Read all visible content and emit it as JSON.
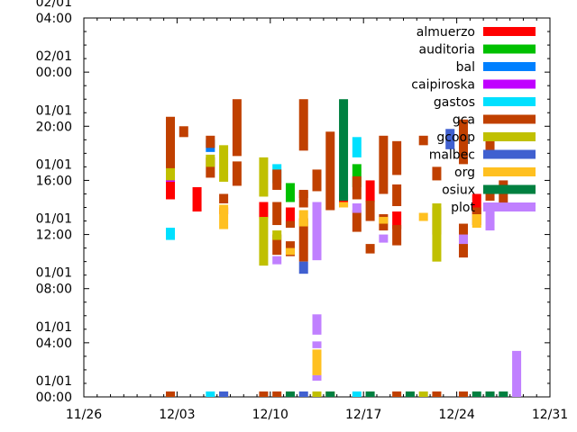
{
  "chart_data": {
    "type": "timeline",
    "title": "",
    "xlabel": "",
    "ylabel": "",
    "x_ticks": [
      "11/26",
      "12/03",
      "12/10",
      "12/17",
      "12/24",
      "12/31"
    ],
    "x_range_days": [
      0,
      35
    ],
    "y_ticks": [
      {
        "date": "01/01",
        "time": "00:00"
      },
      {
        "date": "01/01",
        "time": "04:00"
      },
      {
        "date": "01/01",
        "time": "08:00"
      },
      {
        "date": "01/01",
        "time": "12:00"
      },
      {
        "date": "01/01",
        "time": "16:00"
      },
      {
        "date": "01/01",
        "time": "20:00"
      },
      {
        "date": "02/01",
        "time": "00:00"
      },
      {
        "date": "02/01",
        "time": "04:00"
      }
    ],
    "y_range_hours": [
      0,
      28
    ],
    "grid": false,
    "legend_position": "top-right",
    "series": [
      {
        "name": "almuerzo",
        "color": "#ff0000",
        "intervals": [
          [
            6.5,
            14.6,
            15.9
          ],
          [
            8.5,
            13.7,
            15.5
          ],
          [
            10.5,
            13.5,
            14.0
          ],
          [
            13.5,
            13.2,
            14.4
          ],
          [
            15.5,
            12.6,
            14.0
          ],
          [
            19.5,
            14.0,
            15.0
          ],
          [
            21.5,
            14.4,
            16.0
          ],
          [
            23.5,
            12.4,
            13.7
          ],
          [
            29.5,
            13.5,
            15.0
          ]
        ]
      },
      {
        "name": "auditoria",
        "color": "#00c000",
        "intervals": [
          [
            15.5,
            14.4,
            15.8
          ],
          [
            20.5,
            15.5,
            17.2
          ]
        ]
      },
      {
        "name": "bal",
        "color": "#0080ff",
        "intervals": [
          [
            9.5,
            18.1,
            19.0
          ]
        ]
      },
      {
        "name": "caipiroska",
        "color": "#c000ff",
        "intervals": [
          [
            6.5,
            15.9,
            16.9
          ]
        ]
      },
      {
        "name": "gastos",
        "color": "#00e0ff",
        "intervals": [
          [
            6.5,
            11.6,
            12.5
          ],
          [
            14.5,
            15.8,
            17.2
          ],
          [
            20.5,
            17.7,
            19.2
          ],
          [
            6.5,
            0,
            0.4
          ],
          [
            9.5,
            0,
            0.4
          ],
          [
            20.5,
            0,
            0.4
          ]
        ]
      },
      {
        "name": "gca",
        "color": "#c04000",
        "intervals": [
          [
            6.5,
            16.7,
            20.7
          ],
          [
            7.5,
            19.2,
            20.0
          ],
          [
            9.5,
            16.2,
            17.7
          ],
          [
            9.5,
            18.4,
            19.3
          ],
          [
            11.5,
            15.6,
            17.4
          ],
          [
            11.5,
            17.8,
            22.0
          ],
          [
            10.5,
            14.3,
            15.0
          ],
          [
            14.5,
            10.5,
            12.0
          ],
          [
            14.5,
            12.7,
            14.4
          ],
          [
            14.5,
            15.3,
            16.8
          ],
          [
            15.5,
            10.4,
            11.5
          ],
          [
            16.5,
            10.0,
            13.2
          ],
          [
            16.5,
            14.7,
            15.2
          ],
          [
            17.5,
            15.2,
            16.8
          ],
          [
            15.5,
            12.5,
            13.0
          ],
          [
            16.5,
            14.0,
            15.3
          ],
          [
            16.5,
            18.2,
            22.0
          ],
          [
            18.5,
            13.8,
            19.6
          ],
          [
            21.5,
            10.6,
            11.3
          ],
          [
            21.5,
            13.0,
            14.5
          ],
          [
            20.5,
            12.2,
            13.8
          ],
          [
            20.5,
            14.6,
            16.3
          ],
          [
            23.5,
            11.2,
            12.7
          ],
          [
            22.5,
            12.3,
            13.5
          ],
          [
            22.5,
            15.0,
            19.3
          ],
          [
            23.5,
            14.1,
            15.7
          ],
          [
            23.5,
            16.4,
            18.9
          ],
          [
            25.5,
            18.6,
            19.3
          ],
          [
            26.5,
            12.0,
            14.0
          ],
          [
            26.5,
            16.0,
            17.0
          ],
          [
            28.5,
            10.3,
            11.8
          ],
          [
            28.5,
            11.7,
            12.8
          ],
          [
            28.5,
            17.2,
            20.5
          ],
          [
            29.5,
            12.7,
            14.0
          ],
          [
            30.5,
            14.5,
            15.6
          ],
          [
            30.5,
            17.6,
            19.5
          ],
          [
            31.5,
            14.3,
            16.0
          ],
          [
            6.5,
            0,
            0.4
          ],
          [
            10.5,
            0,
            0.4
          ],
          [
            13.5,
            0,
            0.4
          ],
          [
            14.5,
            0,
            0.4
          ],
          [
            23.5,
            0,
            0.4
          ],
          [
            26.5,
            0,
            0.4
          ],
          [
            28.5,
            0,
            0.4
          ],
          [
            30.5,
            0,
            0.4
          ]
        ]
      },
      {
        "name": "gcoop",
        "color": "#c0c000",
        "intervals": [
          [
            6.5,
            16.0,
            16.9
          ],
          [
            9.5,
            17.0,
            17.9
          ],
          [
            10.5,
            15.9,
            18.6
          ],
          [
            13.5,
            9.7,
            13.3
          ],
          [
            13.5,
            14.8,
            17.7
          ],
          [
            14.5,
            11.6,
            12.3
          ],
          [
            17.5,
            10.3,
            13.1
          ],
          [
            26.5,
            10.0,
            14.3
          ],
          [
            30.5,
            15.3,
            15.6
          ],
          [
            17.5,
            0,
            0.4
          ],
          [
            25.5,
            0,
            0.4
          ]
        ]
      },
      {
        "name": "malbec",
        "color": "#4060d0",
        "intervals": [
          [
            10.5,
            0,
            0.4
          ],
          [
            16.5,
            9.1,
            10.0
          ],
          [
            27.5,
            18.3,
            19.8
          ],
          [
            16.5,
            0,
            0.4
          ]
        ]
      },
      {
        "name": "org",
        "color": "#ffc020",
        "intervals": [
          [
            10.5,
            12.4,
            14.2
          ],
          [
            15.5,
            10.5,
            11.0
          ],
          [
            16.5,
            12.6,
            13.8
          ],
          [
            17.5,
            1.6,
            3.5
          ],
          [
            19.5,
            14.0,
            14.4
          ],
          [
            22.5,
            12.8,
            13.3
          ],
          [
            25.5,
            13.0,
            13.6
          ],
          [
            29.5,
            12.5,
            13.5
          ],
          [
            31.5,
            13.9,
            14.0
          ],
          [
            18.5,
            0,
            0.4
          ]
        ]
      },
      {
        "name": "osiux",
        "color": "#008040",
        "intervals": [
          [
            19.5,
            14.5,
            22.0
          ],
          [
            15.5,
            0,
            0.4
          ],
          [
            18.5,
            0,
            0.4
          ],
          [
            21.5,
            0,
            0.4
          ],
          [
            24.5,
            0,
            0.4
          ],
          [
            29.5,
            0,
            0.4
          ],
          [
            30.5,
            0,
            0.4
          ],
          [
            31.5,
            0,
            0.4
          ]
        ]
      },
      {
        "name": "plot",
        "color": "#c080ff",
        "intervals": [
          [
            14.5,
            9.8,
            10.4
          ],
          [
            17.5,
            10.1,
            14.4
          ],
          [
            17.5,
            4.6,
            6.1
          ],
          [
            17.5,
            3.6,
            4.1
          ],
          [
            17.5,
            1.2,
            1.6
          ],
          [
            20.5,
            13.6,
            14.3
          ],
          [
            22.5,
            11.4,
            12.0
          ],
          [
            28.5,
            11.3,
            12.0
          ],
          [
            30.5,
            12.3,
            14.2
          ],
          [
            32.5,
            0,
            3.4
          ]
        ]
      }
    ]
  }
}
